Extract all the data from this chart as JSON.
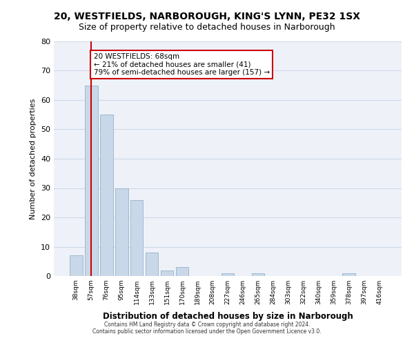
{
  "title1": "20, WESTFIELDS, NARBOROUGH, KING'S LYNN, PE32 1SX",
  "title2": "Size of property relative to detached houses in Narborough",
  "xlabel": "Distribution of detached houses by size in Narborough",
  "ylabel": "Number of detached properties",
  "bar_labels": [
    "38sqm",
    "57sqm",
    "76sqm",
    "95sqm",
    "114sqm",
    "133sqm",
    "151sqm",
    "170sqm",
    "189sqm",
    "208sqm",
    "227sqm",
    "246sqm",
    "265sqm",
    "284sqm",
    "303sqm",
    "322sqm",
    "340sqm",
    "359sqm",
    "378sqm",
    "397sqm",
    "416sqm"
  ],
  "bar_values": [
    7,
    65,
    55,
    30,
    26,
    8,
    2,
    3,
    0,
    0,
    1,
    0,
    1,
    0,
    0,
    0,
    0,
    0,
    1,
    0,
    0
  ],
  "bar_color": "#c8d8e8",
  "bar_edge_color": "#a0b8cc",
  "grid_color": "#d0d8e8",
  "background_color": "#eef2f8",
  "annotation_text": "20 WESTFIELDS: 68sqm\n← 21% of detached houses are smaller (41)\n79% of semi-detached houses are larger (157) →",
  "annotation_box_color": "#ffffff",
  "annotation_box_edge": "#cc0000",
  "vline_x": 1,
  "vline_color": "#cc0000",
  "ylim": [
    0,
    80
  ],
  "yticks": [
    0,
    10,
    20,
    30,
    40,
    50,
    60,
    70,
    80
  ],
  "footer1": "Contains HM Land Registry data © Crown copyright and database right 2024.",
  "footer2": "Contains public sector information licensed under the Open Government Licence v3.0."
}
